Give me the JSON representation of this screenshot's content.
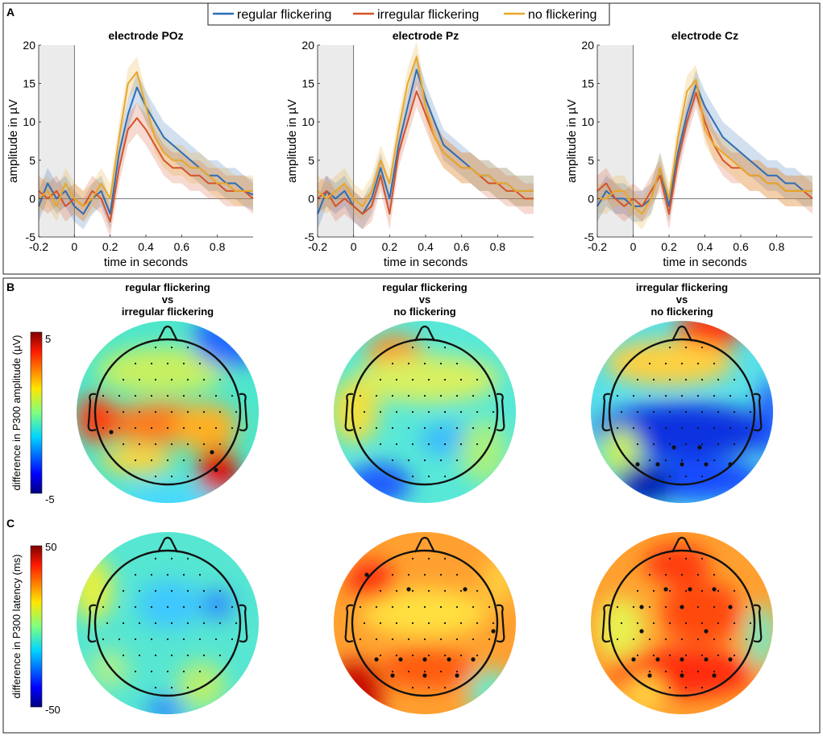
{
  "panels": {
    "A": {
      "letter": "A"
    },
    "B": {
      "letter": "B",
      "colorbar_label": "difference in P300 amplitude (µV)",
      "cbar_max": "5",
      "cbar_min": "-5"
    },
    "C": {
      "letter": "C",
      "colorbar_label": "difference in P300 latency (ms)",
      "cbar_max": "50",
      "cbar_min": "-50"
    }
  },
  "legend": [
    {
      "label": "regular flickering",
      "color": "#2e6db4"
    },
    {
      "label": "irregular flickering",
      "color": "#d4532a"
    },
    {
      "label": "no flickering",
      "color": "#e8a72a"
    }
  ],
  "topo_titles": [
    [
      "regular flickering",
      "vs",
      "irregular flickering"
    ],
    [
      "regular flickering",
      "vs",
      "no flickering"
    ],
    [
      "irregular flickering",
      "vs",
      "no flickering"
    ]
  ],
  "chart_data": [
    {
      "type": "line",
      "title": "electrode POz",
      "xlabel": "time in seconds",
      "ylabel": "amplitude in µV",
      "xlim": [
        -0.2,
        1.0
      ],
      "ylim": [
        -5,
        20
      ],
      "xticks": [
        "-0.2",
        "0",
        "0.2",
        "0.4",
        "0.6",
        "0.8"
      ],
      "yticks": [
        "-5",
        "0",
        "5",
        "10",
        "15",
        "20"
      ],
      "x": [
        -0.2,
        -0.15,
        -0.1,
        -0.05,
        0,
        0.05,
        0.1,
        0.15,
        0.2,
        0.25,
        0.3,
        0.35,
        0.4,
        0.45,
        0.5,
        0.55,
        0.6,
        0.65,
        0.7,
        0.75,
        0.8,
        0.85,
        0.9,
        0.95,
        1.0
      ],
      "series": [
        {
          "name": "regular flickering",
          "values": [
            -1,
            2,
            0,
            1,
            -1,
            -2,
            0,
            1,
            -2,
            6,
            11,
            14.5,
            12,
            10,
            8,
            7,
            6,
            5,
            4,
            3,
            3,
            2,
            2,
            1,
            0.5
          ]
        },
        {
          "name": "irregular flickering",
          "values": [
            1,
            0,
            1,
            -1,
            0,
            -1,
            1,
            0,
            -3,
            4,
            9,
            10.5,
            9,
            7,
            5,
            4,
            4,
            3,
            3,
            2,
            2,
            1,
            1,
            1,
            0
          ]
        },
        {
          "name": "no flickering",
          "values": [
            0,
            1,
            -1,
            2,
            0,
            -1,
            0,
            2,
            0,
            8,
            15,
            16.5,
            12,
            8,
            6,
            5,
            5,
            4,
            4,
            3,
            2,
            2,
            1,
            1,
            1
          ]
        }
      ]
    },
    {
      "type": "line",
      "title": "electrode Pz",
      "xlabel": "time in seconds",
      "ylabel": "amplitude in µV",
      "xlim": [
        -0.2,
        1.0
      ],
      "ylim": [
        -5,
        20
      ],
      "xticks": [
        "-0.2",
        "0",
        "0.2",
        "0.4",
        "0.6",
        "0.8"
      ],
      "yticks": [
        "-5",
        "0",
        "5",
        "10",
        "15",
        "20"
      ],
      "x": [
        -0.2,
        -0.15,
        -0.1,
        -0.05,
        0,
        0.05,
        0.1,
        0.15,
        0.2,
        0.25,
        0.3,
        0.35,
        0.4,
        0.45,
        0.5,
        0.55,
        0.6,
        0.65,
        0.7,
        0.75,
        0.8,
        0.85,
        0.9,
        0.95,
        1.0
      ],
      "series": [
        {
          "name": "regular flickering",
          "values": [
            -2,
            1,
            0,
            1,
            -1,
            -2,
            0,
            4,
            0,
            7,
            12,
            16.8,
            13,
            10,
            7,
            6,
            5,
            4,
            3,
            3,
            2,
            2,
            1,
            1,
            1
          ]
        },
        {
          "name": "irregular flickering",
          "values": [
            0,
            1,
            -1,
            0,
            -1,
            -2,
            -1,
            3,
            -2,
            6,
            10,
            14,
            11,
            8,
            6,
            5,
            4,
            4,
            3,
            2,
            2,
            1,
            1,
            0,
            0
          ]
        },
        {
          "name": "no flickering",
          "values": [
            1,
            0,
            1,
            2,
            0,
            -1,
            1,
            5,
            2,
            9,
            15,
            18.5,
            12,
            8,
            6,
            5,
            4,
            4,
            3,
            3,
            2,
            2,
            1,
            1,
            1
          ]
        }
      ]
    },
    {
      "type": "line",
      "title": "electrode Cz",
      "xlabel": "time in seconds",
      "ylabel": "amplitude in µV",
      "xlim": [
        -0.2,
        1.0
      ],
      "ylim": [
        -5,
        20
      ],
      "xticks": [
        "-0.2",
        "0",
        "0.2",
        "0.4",
        "0.6",
        "0.8"
      ],
      "yticks": [
        "-5",
        "0",
        "5",
        "10",
        "15",
        "20"
      ],
      "x": [
        -0.2,
        -0.15,
        -0.1,
        -0.05,
        0,
        0.05,
        0.1,
        0.15,
        0.2,
        0.25,
        0.3,
        0.35,
        0.4,
        0.45,
        0.5,
        0.55,
        0.6,
        0.65,
        0.7,
        0.75,
        0.8,
        0.85,
        0.9,
        0.95,
        1.0
      ],
      "series": [
        {
          "name": "regular flickering",
          "values": [
            -1,
            1,
            0,
            0,
            -1,
            -1,
            0,
            4,
            -1,
            6,
            11,
            14.8,
            12,
            10,
            8,
            7,
            6,
            5,
            4,
            3,
            3,
            2,
            2,
            1,
            1
          ]
        },
        {
          "name": "irregular flickering",
          "values": [
            1,
            2,
            0,
            -1,
            0,
            -1,
            1,
            3,
            -2,
            5,
            10,
            13.8,
            10,
            7,
            5,
            4,
            4,
            3,
            3,
            2,
            2,
            1,
            1,
            1,
            0
          ]
        },
        {
          "name": "no flickering",
          "values": [
            0,
            0,
            1,
            1,
            -1,
            -2,
            0,
            4,
            0,
            8,
            14,
            15.5,
            9,
            7,
            6,
            5,
            4,
            3,
            3,
            2,
            2,
            1,
            1,
            1,
            1
          ]
        }
      ]
    }
  ]
}
